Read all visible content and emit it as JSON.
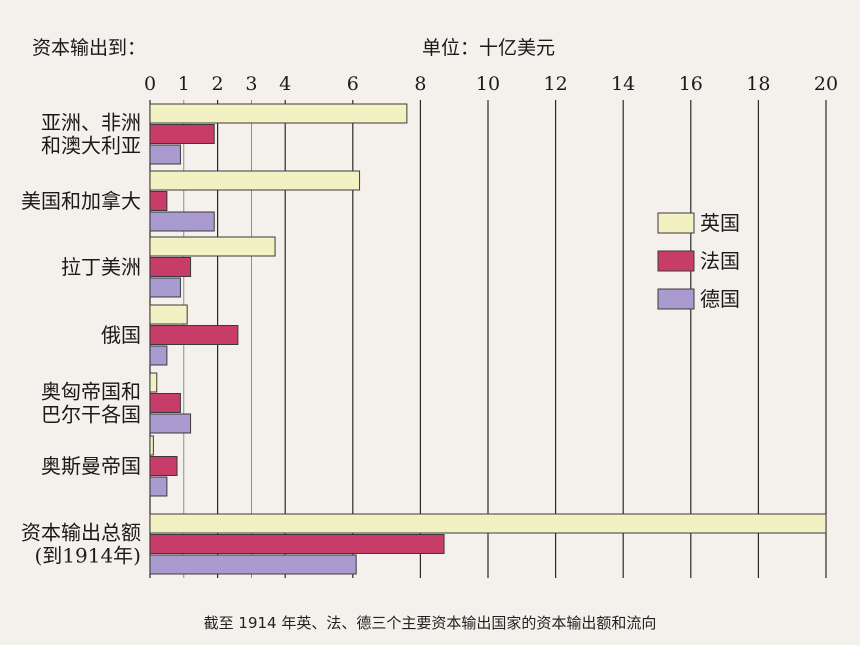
{
  "chart_data": {
    "type": "bar",
    "orientation": "horizontal",
    "title": "",
    "left_header": "资本输出到：",
    "unit_label": "单位：十亿美元",
    "caption": "截至 1914 年英、法、德三个主要资本输出国家的资本输出额和流向",
    "xlim": [
      0,
      20
    ],
    "x_tick_labels": [
      "0",
      "1",
      "2",
      "3",
      "4",
      "6",
      "8",
      "10",
      "12",
      "14",
      "16",
      "18",
      "20"
    ],
    "categories": [
      [
        "亚洲、非洲",
        "和澳大利亚"
      ],
      [
        "美国和加拿大"
      ],
      [
        "拉丁美洲"
      ],
      [
        "俄国"
      ],
      [
        "奥匈帝国和",
        "巴尔干各国"
      ],
      [
        "奥斯曼帝国"
      ],
      [
        "资本输出总额",
        "(到1914年)"
      ]
    ],
    "series": [
      {
        "name": "英国",
        "color": "#f1f1c3",
        "values": [
          7.6,
          6.2,
          3.7,
          1.1,
          0.2,
          0.1,
          20.0
        ]
      },
      {
        "name": "法国",
        "color": "#c83c6a",
        "values": [
          1.9,
          0.5,
          1.2,
          2.6,
          0.9,
          0.8,
          8.7
        ]
      },
      {
        "name": "德国",
        "color": "#a99ad0",
        "values": [
          0.9,
          1.9,
          0.9,
          0.5,
          1.2,
          0.5,
          6.1
        ]
      }
    ],
    "grid": true,
    "legend_position": "right"
  }
}
